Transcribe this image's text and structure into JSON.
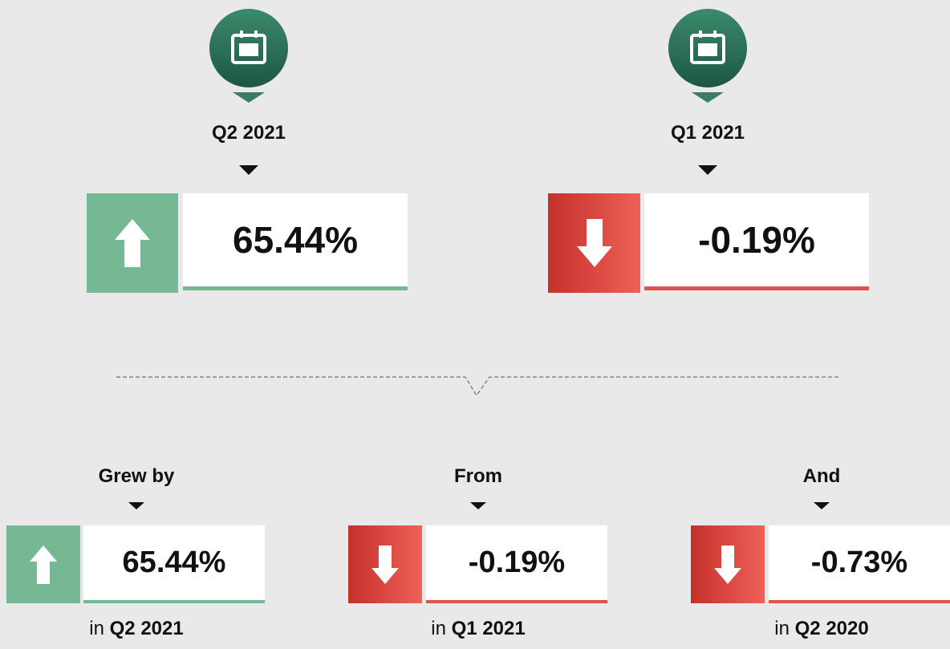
{
  "top": [
    {
      "period": "Q2 2021",
      "value": "65.44%"
    },
    {
      "period": "Q1 2021",
      "value": "-0.19%"
    }
  ],
  "bottom": [
    {
      "label": "Grew by",
      "value": "65.44%",
      "prefix": "in",
      "period": "Q2 2021"
    },
    {
      "label": "From",
      "value": "-0.19%",
      "prefix": "in",
      "period": "Q1 2021"
    },
    {
      "label": "And",
      "value": "-0.73%",
      "prefix": "in",
      "period": "Q2 2020"
    }
  ]
}
